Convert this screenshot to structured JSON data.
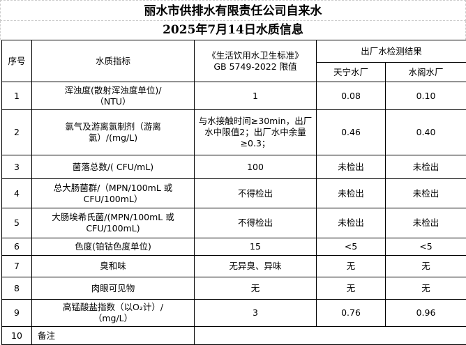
{
  "title": "丽水市供排水有限责任公司自来水",
  "subtitle": "2025年7月14日水质信息",
  "header": {
    "no": "序号",
    "indicator": "水质指标",
    "standard_line1": "《生活饮用水卫生标准》",
    "standard_line2": "GB 5749-2022 限值",
    "results": "出厂水检测结果",
    "plant1": "天宁水厂",
    "plant2": "水阁水厂"
  },
  "rows": [
    {
      "no": "1",
      "indicator": "浑浊度(散射浑浊度单位)/（NTU）",
      "limit": "1",
      "plant1": "0.08",
      "plant2": "0.10"
    },
    {
      "no": "2",
      "indicator": "氯气及游离氯制剂（游离氯）/(mg/L)",
      "limit": "与水接触时间≥30min，出厂水中限值2；出厂水中余量≥0.3；",
      "plant1": "0.46",
      "plant2": "0.40"
    },
    {
      "no": "3",
      "indicator": "菌落总数/( CFU/mL)",
      "limit": "100",
      "plant1": "未检出",
      "plant2": "未检出"
    },
    {
      "no": "4",
      "indicator": "总大肠菌群/（MPN/100mL 或 CFU/100mL）",
      "limit": "不得检出",
      "plant1": "未检出",
      "plant2": "未检出"
    },
    {
      "no": "5",
      "indicator": "大肠埃希氏菌/(MPN/100mL 或 CFU/100mL)",
      "limit": "不得检出",
      "plant1": "未检出",
      "plant2": "未检出"
    },
    {
      "no": "6",
      "indicator": "色度(铂钴色度单位)",
      "limit": "15",
      "plant1": "<5",
      "plant2": "<5"
    },
    {
      "no": "7",
      "indicator": "臭和味",
      "limit": "无异臭、异味",
      "plant1": "无",
      "plant2": "无"
    },
    {
      "no": "8",
      "indicator": "肉眼可见物",
      "limit": "无",
      "plant1": "无",
      "plant2": "无"
    },
    {
      "no": "9",
      "indicator": "高锰酸盐指数（以O₂计）/（mg/L）",
      "limit": "3",
      "plant1": "0.76",
      "plant2": "0.96"
    }
  ],
  "remark": {
    "no": "10",
    "label": "备注"
  }
}
